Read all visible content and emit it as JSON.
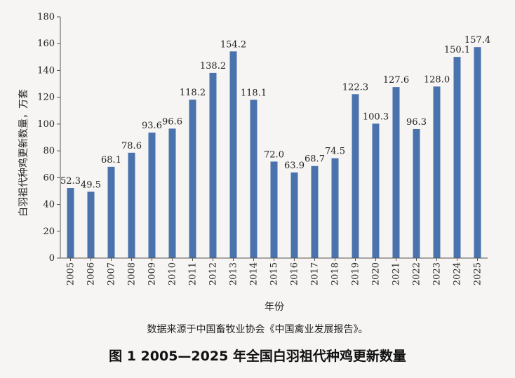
{
  "chart_data": {
    "type": "bar",
    "categories": [
      "2005",
      "2006",
      "2007",
      "2008",
      "2009",
      "2010",
      "2011",
      "2012",
      "2013",
      "2014",
      "2015",
      "2016",
      "2017",
      "2018",
      "2019",
      "2020",
      "2021",
      "2022",
      "2023",
      "2024",
      "2025"
    ],
    "values": [
      52.3,
      49.5,
      68.1,
      78.6,
      93.6,
      96.6,
      118.2,
      138.2,
      154.2,
      118.1,
      72.0,
      63.9,
      68.7,
      74.5,
      122.3,
      100.3,
      127.6,
      96.3,
      128.0,
      150.1,
      157.4
    ],
    "value_labels": [
      "52.3",
      "49.5",
      "68.1",
      "78.6",
      "93.6",
      "96.6",
      "118.2",
      "138.2",
      "154.2",
      "118.1",
      "72.0",
      "63.9",
      "68.7",
      "74.5",
      "122.3",
      "100.3",
      "127.6",
      "96.3",
      "128.0",
      "150.1",
      "157.4"
    ],
    "xlabel": "年份",
    "ylabel": "白羽祖代种鸡更新数量，万套",
    "ylim": [
      0,
      180
    ],
    "yticks": [
      "0",
      "20",
      "40",
      "60",
      "80",
      "100",
      "120",
      "140",
      "160",
      "180"
    ],
    "bar_color": "#4a72ad",
    "grid": false,
    "legend": "none"
  },
  "source": "数据来源于中国畜牧业协会《中国禽业发展报告》。",
  "caption": "图 1 2005—2025 年全国白羽祖代种鸡更新数量"
}
